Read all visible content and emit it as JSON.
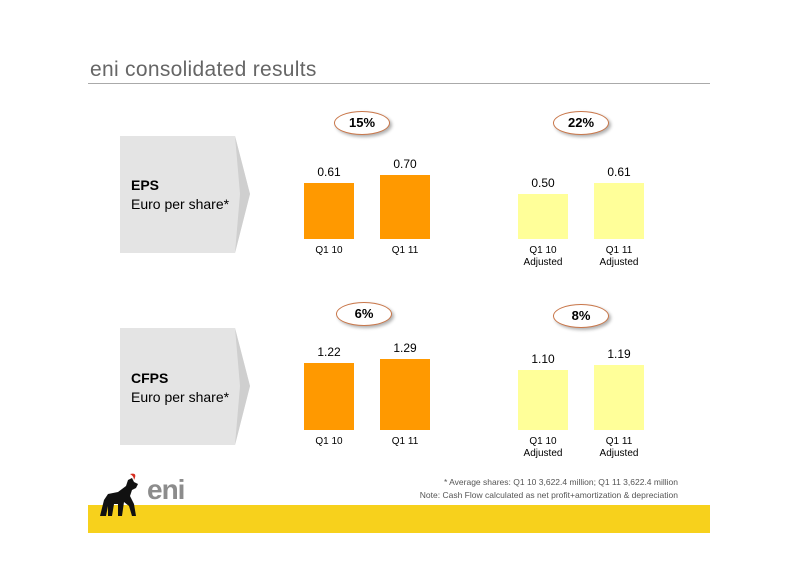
{
  "page": {
    "title": "eni consolidated results"
  },
  "sections": [
    {
      "label_bold": "EPS",
      "label_sub": "Euro per share*",
      "groups": [
        {
          "badge": "15%",
          "color": "#ff9900",
          "bars": [
            {
              "category": "Q1 10",
              "value": 0.61,
              "value_label": "0.61"
            },
            {
              "category": "Q1 11",
              "value": 0.7,
              "value_label": "0.70"
            }
          ]
        },
        {
          "badge": "22%",
          "color": "#ffff99",
          "bars": [
            {
              "category": "Q1 10\nAdjusted",
              "value": 0.5,
              "value_label": "0.50"
            },
            {
              "category": "Q1 11\nAdjusted",
              "value": 0.61,
              "value_label": "0.61"
            }
          ]
        }
      ]
    },
    {
      "label_bold": "CFPS",
      "label_sub": "Euro per share*",
      "groups": [
        {
          "badge": "6%",
          "color": "#ff9900",
          "bars": [
            {
              "category": "Q1 10",
              "value": 1.22,
              "value_label": "1.22"
            },
            {
              "category": "Q1 11",
              "value": 1.29,
              "value_label": "1.29"
            }
          ]
        },
        {
          "badge": "8%",
          "color": "#ffff99",
          "bars": [
            {
              "category": "Q1 10\nAdjusted",
              "value": 1.1,
              "value_label": "1.10"
            },
            {
              "category": "Q1 11\nAdjusted",
              "value": 1.19,
              "value_label": "1.19"
            }
          ]
        }
      ]
    }
  ],
  "footnotes": {
    "line1": "*   Average shares: Q1 10 3,622.4 million; Q1 11 3,622.4 million",
    "line2": "Note: Cash Flow calculated as net profit+amortization & depreciation"
  },
  "logo": {
    "text": "eni",
    "icon": "six-legged-dog-icon"
  }
}
